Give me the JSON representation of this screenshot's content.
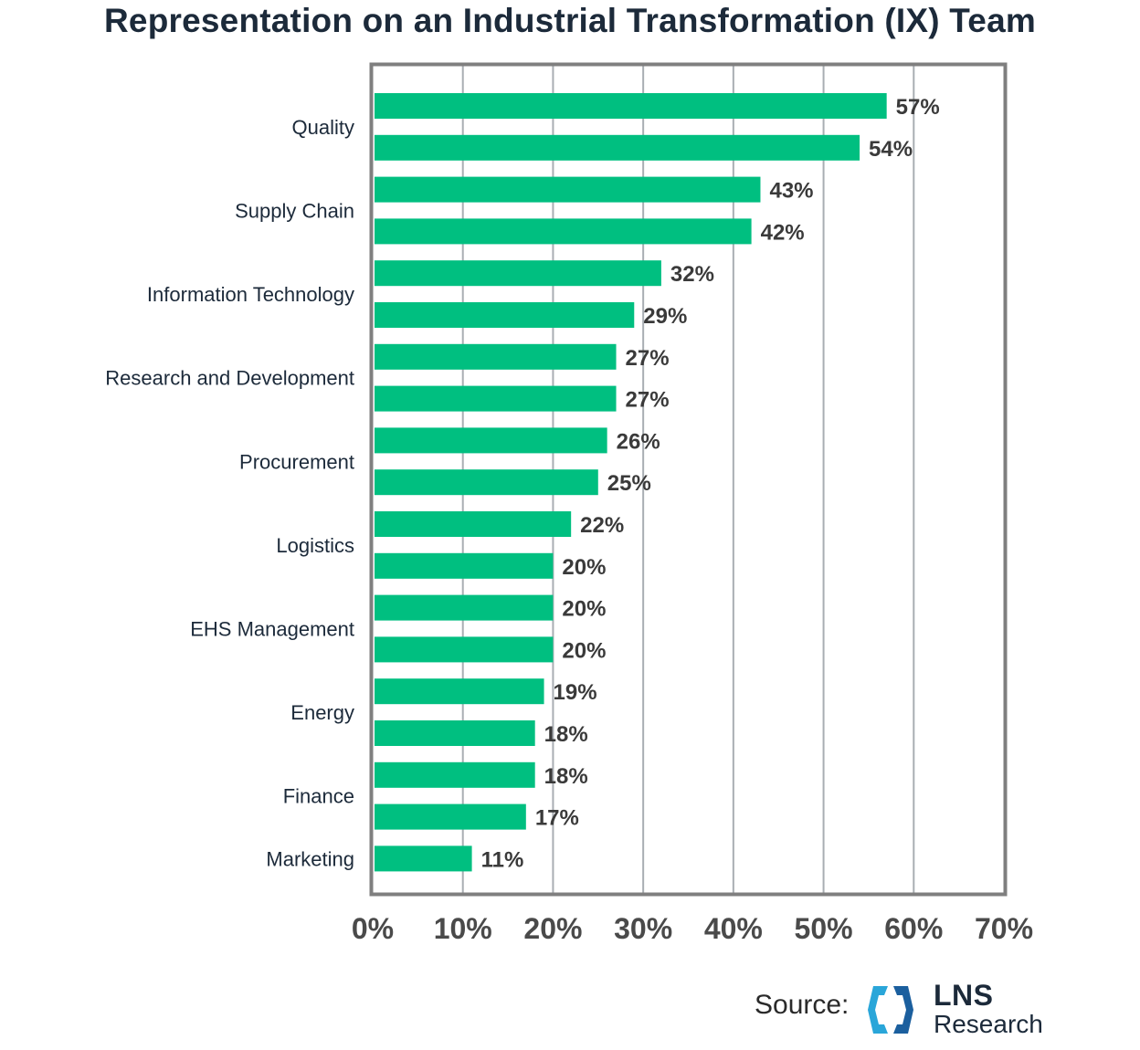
{
  "chart_data": {
    "type": "bar",
    "orientation": "horizontal",
    "title": "Representation on an Industrial Transformation (IX) Team",
    "categories": [
      "Quality",
      "Supply Chain",
      "Information Technology",
      "Research and Development",
      "Procurement",
      "Logistics",
      "EHS Management",
      "Energy",
      "Finance",
      "Marketing"
    ],
    "bars": [
      {
        "category_index": 0,
        "value": 57,
        "label": "57%"
      },
      {
        "category_index": 0,
        "value": 54,
        "label": "54%"
      },
      {
        "category_index": 1,
        "value": 43,
        "label": "43%"
      },
      {
        "category_index": 1,
        "value": 42,
        "label": "42%"
      },
      {
        "category_index": 2,
        "value": 32,
        "label": "32%"
      },
      {
        "category_index": 2,
        "value": 29,
        "label": "29%"
      },
      {
        "category_index": 3,
        "value": 27,
        "label": "27%"
      },
      {
        "category_index": 3,
        "value": 27,
        "label": "27%"
      },
      {
        "category_index": 4,
        "value": 26,
        "label": "26%"
      },
      {
        "category_index": 4,
        "value": 25,
        "label": "25%"
      },
      {
        "category_index": 5,
        "value": 22,
        "label": "22%"
      },
      {
        "category_index": 5,
        "value": 20,
        "label": "20%"
      },
      {
        "category_index": 6,
        "value": 20,
        "label": "20%"
      },
      {
        "category_index": 6,
        "value": 20,
        "label": "20%"
      },
      {
        "category_index": 7,
        "value": 19,
        "label": "19%"
      },
      {
        "category_index": 7,
        "value": 18,
        "label": "18%"
      },
      {
        "category_index": 8,
        "value": 18,
        "label": "18%"
      },
      {
        "category_index": 8,
        "value": 17,
        "label": "17%"
      },
      {
        "category_index": 9,
        "value": 11,
        "label": "11%"
      }
    ],
    "xlim": [
      0,
      70
    ],
    "xticks": [
      0,
      10,
      20,
      30,
      40,
      50,
      60,
      70
    ],
    "xtick_labels": [
      "0%",
      "10%",
      "20%",
      "30%",
      "40%",
      "50%",
      "60%",
      "70%"
    ],
    "xlabel": "",
    "ylabel": "",
    "grid": true,
    "bar_color": "#00bf80",
    "grid_color": "#a9aeb3",
    "frame_color": "#7f7f7f"
  },
  "source": {
    "label": "Source:",
    "brand_name": "LNS",
    "brand_sub": "Research",
    "logo_icon": "hexagon-bracket-logo",
    "logo_colors": [
      "#1b5f9e",
      "#2aa6d9",
      "#1c2a3a"
    ]
  }
}
